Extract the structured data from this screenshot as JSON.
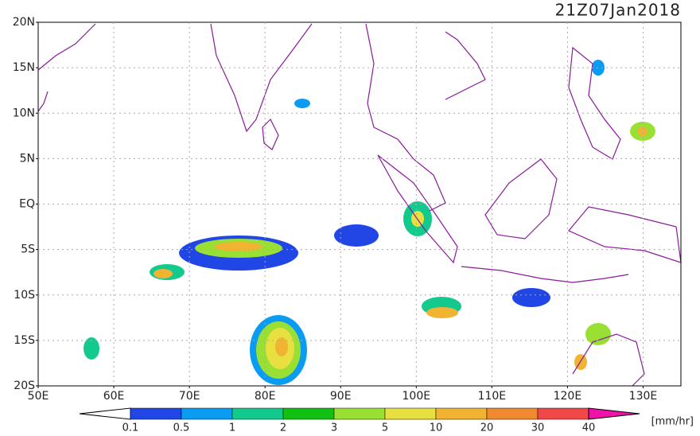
{
  "map": {
    "title": "21Z07Jan2018",
    "xlim": [
      50,
      135
    ],
    "ylim": [
      -20,
      20
    ],
    "lat_ticks": [
      {
        "value": 20,
        "label": "20N"
      },
      {
        "value": 15,
        "label": "15N"
      },
      {
        "value": 10,
        "label": "10N"
      },
      {
        "value": 5,
        "label": "5N"
      },
      {
        "value": 0,
        "label": "EQ"
      },
      {
        "value": -5,
        "label": "5S"
      },
      {
        "value": -10,
        "label": "10S"
      },
      {
        "value": -15,
        "label": "15S"
      },
      {
        "value": -20,
        "label": "20S"
      }
    ],
    "lon_ticks": [
      {
        "value": 50,
        "label": "50E"
      },
      {
        "value": 60,
        "label": "60E"
      },
      {
        "value": 70,
        "label": "70E"
      },
      {
        "value": 80,
        "label": "80E"
      },
      {
        "value": 90,
        "label": "90E"
      },
      {
        "value": 100,
        "label": "100E"
      },
      {
        "value": 110,
        "label": "110E"
      },
      {
        "value": 120,
        "label": "120E"
      },
      {
        "value": 130,
        "label": "130E"
      }
    ],
    "colorbar": {
      "levels": [
        0.1,
        0.5,
        1,
        2,
        3,
        5,
        10,
        20,
        30,
        40
      ],
      "colors": [
        "#ffffff",
        "#2046e6",
        "#0a9cf2",
        "#12c98e",
        "#12c012",
        "#9ae034",
        "#e8e040",
        "#f0b432",
        "#f08a30",
        "#f04848",
        "#f012a8"
      ],
      "unit": "[mm/hr]"
    }
  }
}
